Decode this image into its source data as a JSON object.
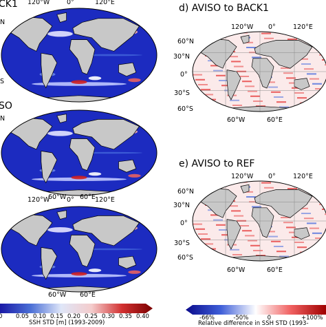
{
  "panels": {
    "a": {
      "title": "CK1"
    },
    "b": {
      "title": "SO"
    },
    "c": {
      "title": ""
    },
    "d": {
      "title": "d) AVISO to BACK1"
    },
    "e": {
      "title": "e) AVISO to REF"
    }
  },
  "map_labels": {
    "lon_top": [
      "120°W",
      "0°",
      "120°E"
    ],
    "lon_bottom": [
      "60°W",
      "60°E"
    ],
    "lat_left": [
      "60°N",
      "30°N",
      "0°",
      "30°S",
      "60°S"
    ],
    "left_stub_n": "N",
    "left_stub_s": "S"
  },
  "colorbar_left": {
    "ticks": [
      "0",
      "0.05",
      "0.10",
      "0.15",
      "0.20",
      "0.25",
      "0.30",
      "0.35",
      "0.40"
    ],
    "label": "SSH STD [m] (1993-2009)",
    "colors": [
      "#1a1aa6",
      "#4b6fd6",
      "#dfe6f8",
      "#f4cccc",
      "#d23030",
      "#7a0000"
    ]
  },
  "colorbar_right": {
    "ticks": [
      "-66%",
      "-50%",
      "0",
      "+100%"
    ],
    "label": "Relative difference in SSH STD (1993-",
    "colors": [
      "#0a0a8c",
      "#3f5fd8",
      "#ffffff",
      "#f06060",
      "#a00000"
    ]
  },
  "colors": {
    "ocean_low": "#1c2bc0",
    "land": "#c8c8c8",
    "diff_red": "#e84040",
    "diff_blue": "#5a78e0"
  }
}
